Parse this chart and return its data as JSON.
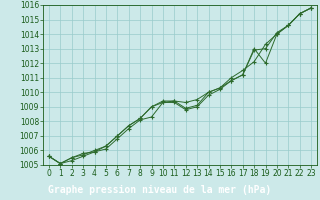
{
  "x": [
    0,
    1,
    2,
    3,
    4,
    5,
    6,
    7,
    8,
    9,
    10,
    11,
    12,
    13,
    14,
    15,
    16,
    17,
    18,
    19,
    20,
    21,
    22,
    23
  ],
  "line1": [
    1005.6,
    1005.1,
    1005.5,
    1005.8,
    1005.9,
    1006.1,
    1006.8,
    1007.5,
    1008.1,
    1008.3,
    1009.3,
    1009.4,
    1008.9,
    1009.1,
    1010.0,
    1010.3,
    1010.8,
    1011.2,
    1013.0,
    1012.0,
    1014.0,
    1014.6,
    1015.4,
    1015.8
  ],
  "line2": [
    1005.6,
    1005.1,
    1005.3,
    1005.6,
    1005.9,
    1006.3,
    1007.0,
    1007.7,
    1008.2,
    1009.0,
    1009.4,
    1009.4,
    1009.3,
    1009.5,
    1010.0,
    1010.3,
    1011.0,
    1011.5,
    1012.1,
    1013.3,
    1014.0,
    1014.6,
    1015.4,
    1015.8
  ],
  "line3": [
    1005.6,
    1005.1,
    1005.5,
    1005.7,
    1006.0,
    1006.3,
    1007.0,
    1007.7,
    1008.2,
    1009.0,
    1009.3,
    1009.3,
    1008.8,
    1009.0,
    1009.8,
    1010.2,
    1010.8,
    1011.2,
    1012.9,
    1013.0,
    1014.1,
    1014.6,
    1015.4,
    1015.8
  ],
  "bg_color": "#cce9e9",
  "grid_color": "#99cccc",
  "line_color": "#2d6b2d",
  "marker": "+",
  "xlabel": "Graphe pression niveau de la mer (hPa)",
  "ylim_min": 1005,
  "ylim_max": 1016,
  "xlim_min": -0.5,
  "xlim_max": 23.5,
  "yticks": [
    1005,
    1006,
    1007,
    1008,
    1009,
    1010,
    1011,
    1012,
    1013,
    1014,
    1015,
    1016
  ],
  "xticks": [
    0,
    1,
    2,
    3,
    4,
    5,
    6,
    7,
    8,
    9,
    10,
    11,
    12,
    13,
    14,
    15,
    16,
    17,
    18,
    19,
    20,
    21,
    22,
    23
  ],
  "tick_fontsize": 5.5,
  "xlabel_fontsize": 7.0,
  "tick_color": "#1a5c1a",
  "axis_color": "#1a5c1a",
  "bottom_color": "#006600"
}
